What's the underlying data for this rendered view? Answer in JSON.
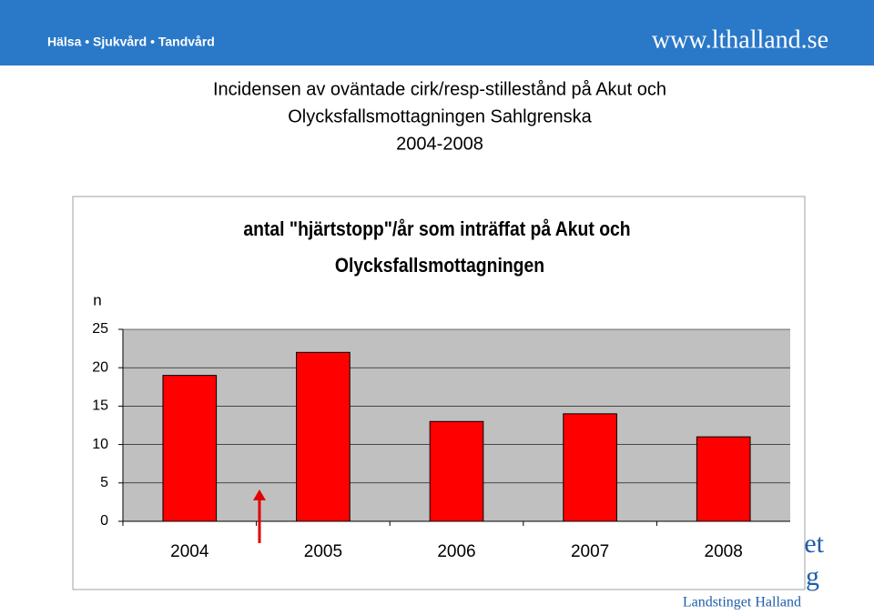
{
  "header": {
    "left": "Hälsa • Sjukvård • Tandvård",
    "url": "www.lthalland.se"
  },
  "slide_title": [
    "Incidensen av oväntade cirk/resp-stillestånd på Akut och",
    "Olycksfallsmottagningen Sahlgrenska",
    "2004-2008"
  ],
  "logo": {
    "fragments": [
      "et",
      "g"
    ],
    "name": "Landstinget Halland"
  },
  "chart_data": {
    "type": "bar",
    "title": [
      "antal \"hjärtstopp\"/år som inträffat på Akut och",
      "Olycksfallsmottagningen"
    ],
    "y_label": "n",
    "categories": [
      "2004",
      "2005",
      "2006",
      "2007",
      "2008"
    ],
    "values": [
      19,
      22,
      13,
      14,
      11
    ],
    "color": "#ff0000",
    "ylim": [
      0,
      25
    ],
    "yticks": [
      0,
      5,
      10,
      15,
      20,
      25
    ],
    "grid": true
  }
}
